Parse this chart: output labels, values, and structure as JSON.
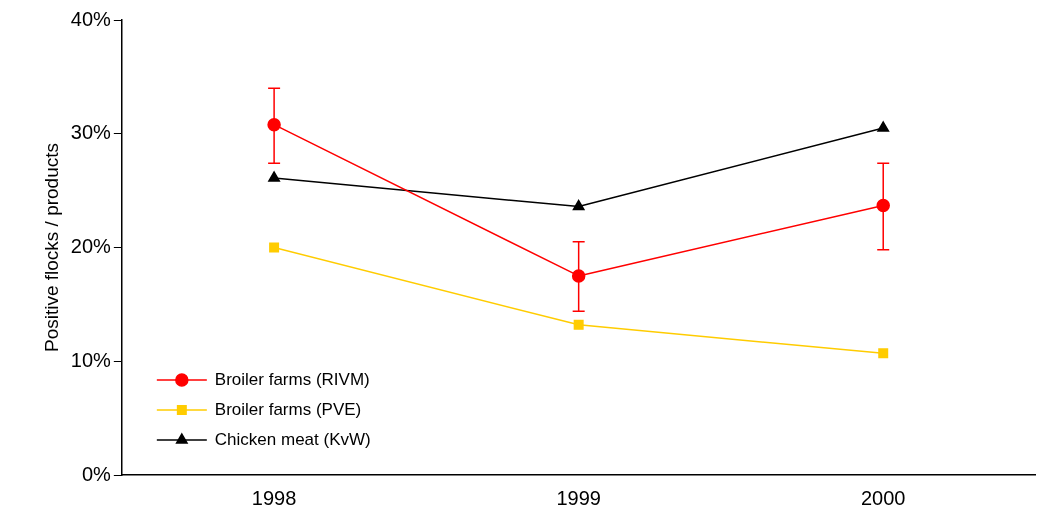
{
  "chart_data": {
    "type": "line",
    "ylabel": "Positive flocks / products",
    "categories": [
      "1998",
      "1999",
      "2000"
    ],
    "ylim": [
      0,
      40
    ],
    "yticks": [
      {
        "value": 0,
        "label": "0%"
      },
      {
        "value": 10,
        "label": "10%"
      },
      {
        "value": 20,
        "label": "20%"
      },
      {
        "value": 30,
        "label": "30%"
      },
      {
        "value": 40,
        "label": "40%"
      }
    ],
    "grid": false,
    "legend": "bottom left",
    "line_style": "solid",
    "series": [
      {
        "name": "Broiler farms (RIVM)",
        "color": "#ff0000",
        "marker": "circle",
        "values": [
          30.8,
          17.5,
          23.7
        ],
        "errors": [
          [
            27.4,
            34.0
          ],
          [
            14.4,
            20.5
          ],
          [
            19.8,
            27.4
          ]
        ]
      },
      {
        "name": "Broiler farms (PVE)",
        "color": "#ffcc00",
        "marker": "square",
        "values": [
          20.0,
          13.2,
          10.7
        ]
      },
      {
        "name": "Chicken meat (KvW)",
        "color": "#000000",
        "marker": "triangle",
        "values": [
          26.1,
          23.6,
          30.5
        ]
      }
    ]
  }
}
